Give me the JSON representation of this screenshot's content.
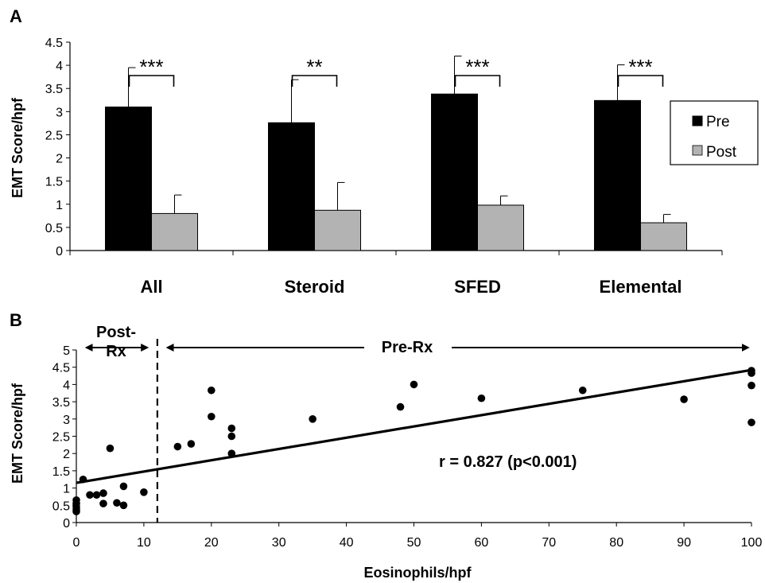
{
  "panel_a": {
    "letter": "A",
    "legend": {
      "pre": "Pre",
      "post": "Post"
    },
    "significance": [
      "***",
      "**",
      "***",
      "***"
    ]
  },
  "panel_b": {
    "letter": "B",
    "label_post_rx_line1": "Post-",
    "label_post_rx_line2": "Rx",
    "label_pre_rx": "Pre-Rx",
    "correlation": "r = 0.827 (p<0.001)"
  },
  "colors": {
    "pre": "#000000",
    "post": "#b3b3b3"
  },
  "chart_data": [
    {
      "type": "bar",
      "title": "",
      "xlabel": "",
      "ylabel": "EMT Score/hpf",
      "ylim": [
        0,
        4.5
      ],
      "yticks": [
        0,
        0.5,
        1,
        1.5,
        2,
        2.5,
        3,
        3.5,
        4,
        4.5
      ],
      "categories": [
        "All",
        "Steroid",
        "SFED",
        "Elemental"
      ],
      "series": [
        {
          "name": "Pre",
          "values": [
            3.1,
            2.76,
            3.38,
            3.24
          ],
          "errors": [
            0.85,
            0.93,
            0.82,
            0.77
          ]
        },
        {
          "name": "Post",
          "values": [
            0.8,
            0.87,
            0.98,
            0.6
          ],
          "errors": [
            0.4,
            0.6,
            0.2,
            0.18
          ]
        }
      ],
      "legend_position": "right",
      "grid": false
    },
    {
      "type": "scatter",
      "title": "",
      "xlabel": "Eosinophils/hpf",
      "ylabel": "EMT Score/hpf",
      "xlim": [
        0,
        100
      ],
      "ylim": [
        0,
        5
      ],
      "xticks": [
        0,
        10,
        20,
        30,
        40,
        50,
        60,
        70,
        80,
        90,
        100
      ],
      "yticks": [
        0,
        0.5,
        1,
        1.5,
        2,
        2.5,
        3,
        3.5,
        4,
        4.5,
        5
      ],
      "points": [
        [
          0,
          0.65
        ],
        [
          0,
          0.55
        ],
        [
          0,
          0.45
        ],
        [
          0,
          0.38
        ],
        [
          0,
          0.32
        ],
        [
          1,
          1.25
        ],
        [
          2,
          0.8
        ],
        [
          3,
          0.8
        ],
        [
          4,
          0.85
        ],
        [
          4,
          0.55
        ],
        [
          5,
          2.15
        ],
        [
          6,
          0.57
        ],
        [
          7,
          1.05
        ],
        [
          7,
          0.5
        ],
        [
          10,
          0.88
        ],
        [
          15,
          2.2
        ],
        [
          17,
          2.28
        ],
        [
          20,
          3.83
        ],
        [
          20,
          3.07
        ],
        [
          23,
          2.73
        ],
        [
          23,
          2.5
        ],
        [
          23,
          2.0
        ],
        [
          35,
          3.0
        ],
        [
          48,
          3.35
        ],
        [
          50,
          4.0
        ],
        [
          60,
          3.6
        ],
        [
          75,
          3.83
        ],
        [
          90,
          3.57
        ],
        [
          100,
          4.4
        ],
        [
          100,
          4.33
        ],
        [
          100,
          3.97
        ],
        [
          100,
          2.9
        ]
      ],
      "fit_line": {
        "x": [
          0,
          100
        ],
        "y": [
          1.15,
          4.42
        ]
      },
      "cutoff_x": 12,
      "grid": false
    }
  ]
}
